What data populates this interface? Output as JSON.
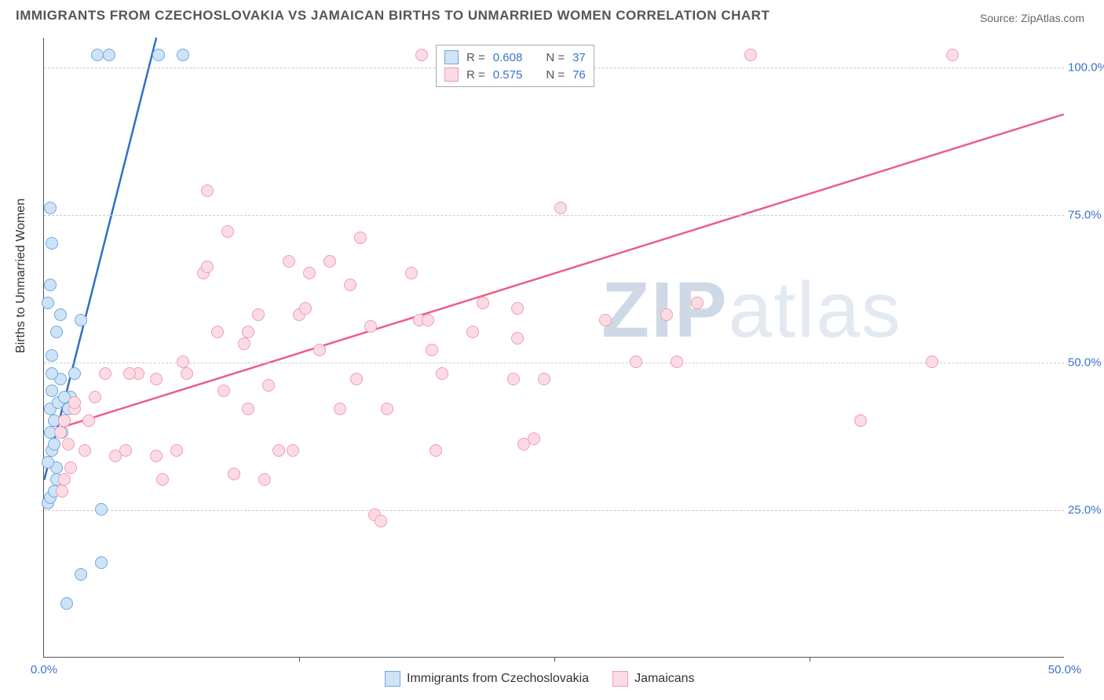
{
  "title": "IMMIGRANTS FROM CZECHOSLOVAKIA VS JAMAICAN BIRTHS TO UNMARRIED WOMEN CORRELATION CHART",
  "source_label": "Source: ZipAtlas.com",
  "ylabel": "Births to Unmarried Women",
  "watermark": {
    "prefix": "ZIP",
    "suffix": "atlas"
  },
  "chart": {
    "type": "scatter",
    "background_color": "#ffffff",
    "grid_color": "#cccccc",
    "axis_color": "#555555",
    "tick_label_color": "#3874cb",
    "xlim": [
      0,
      50
    ],
    "ylim": [
      0,
      105
    ],
    "x_ticks": [
      {
        "v": 0,
        "l": "0.0%"
      },
      {
        "v": 50,
        "l": "50.0%"
      }
    ],
    "x_minor_ticks": [
      12.5,
      25,
      37.5
    ],
    "y_ticks": [
      {
        "v": 25,
        "l": "25.0%"
      },
      {
        "v": 50,
        "l": "50.0%"
      },
      {
        "v": 75,
        "l": "75.0%"
      },
      {
        "v": 100,
        "l": "100.0%"
      }
    ],
    "marker_radius": 8,
    "marker_stroke_width": 1.5,
    "series": [
      {
        "name": "Immigrants from Czechoslovakia",
        "fill_color": "#cfe3f7",
        "stroke_color": "#6fa8e0",
        "line_color": "#2f6fc5",
        "line_width": 2.5,
        "r": 0.608,
        "n": 37,
        "regression": {
          "x1": 0,
          "y1": 30,
          "x2": 5.5,
          "y2": 105
        },
        "points": [
          [
            0.2,
            26
          ],
          [
            0.3,
            27
          ],
          [
            0.5,
            28
          ],
          [
            0.6,
            32
          ],
          [
            0.4,
            35
          ],
          [
            0.3,
            38
          ],
          [
            0.5,
            40
          ],
          [
            0.3,
            42
          ],
          [
            0.4,
            45
          ],
          [
            0.7,
            43
          ],
          [
            0.8,
            47
          ],
          [
            0.4,
            51
          ],
          [
            0.6,
            55
          ],
          [
            0.8,
            58
          ],
          [
            0.2,
            60
          ],
          [
            0.3,
            63
          ],
          [
            0.4,
            70
          ],
          [
            0.3,
            76
          ],
          [
            1.0,
            40
          ],
          [
            1.2,
            42
          ],
          [
            1.3,
            44
          ],
          [
            1.5,
            48
          ],
          [
            0.5,
            36
          ],
          [
            0.2,
            33
          ],
          [
            0.6,
            30
          ],
          [
            0.9,
            38
          ],
          [
            1.0,
            44
          ],
          [
            2.6,
            102
          ],
          [
            3.2,
            102
          ],
          [
            5.6,
            102
          ],
          [
            6.8,
            102
          ],
          [
            0.4,
            48
          ],
          [
            1.1,
            9
          ],
          [
            1.8,
            14
          ],
          [
            2.8,
            16
          ],
          [
            2.8,
            25
          ],
          [
            1.8,
            57
          ]
        ]
      },
      {
        "name": "Jamaicans",
        "fill_color": "#fbdce4",
        "stroke_color": "#f29bb1",
        "line_color": "#ec5f84",
        "line_width": 2.5,
        "r": 0.575,
        "n": 76,
        "regression": {
          "x1": 0,
          "y1": 38,
          "x2": 50,
          "y2": 92
        },
        "points": [
          [
            18.5,
            102
          ],
          [
            34.6,
            102
          ],
          [
            44.5,
            102
          ],
          [
            25.3,
            76
          ],
          [
            8.0,
            79
          ],
          [
            4.6,
            48
          ],
          [
            3.5,
            34
          ],
          [
            4.0,
            35
          ],
          [
            4.2,
            48
          ],
          [
            5.5,
            34
          ],
          [
            5.5,
            47
          ],
          [
            5.8,
            30
          ],
          [
            6.5,
            35
          ],
          [
            6.8,
            50
          ],
          [
            7.0,
            48
          ],
          [
            7.8,
            65
          ],
          [
            8.0,
            66
          ],
          [
            8.5,
            55
          ],
          [
            8.8,
            45
          ],
          [
            9.0,
            72
          ],
          [
            9.3,
            31
          ],
          [
            9.8,
            53
          ],
          [
            10.0,
            42
          ],
          [
            10.0,
            55
          ],
          [
            10.5,
            58
          ],
          [
            10.8,
            30
          ],
          [
            11.0,
            46
          ],
          [
            11.5,
            35
          ],
          [
            12.0,
            67
          ],
          [
            12.2,
            35
          ],
          [
            12.5,
            58
          ],
          [
            12.8,
            59
          ],
          [
            13.0,
            65
          ],
          [
            13.5,
            52
          ],
          [
            14.0,
            67
          ],
          [
            14.5,
            42
          ],
          [
            15.0,
            63
          ],
          [
            15.3,
            47
          ],
          [
            15.5,
            71
          ],
          [
            16.0,
            56
          ],
          [
            16.2,
            24
          ],
          [
            16.5,
            23
          ],
          [
            16.8,
            42
          ],
          [
            18.0,
            65
          ],
          [
            18.4,
            57
          ],
          [
            18.8,
            57
          ],
          [
            19.0,
            52
          ],
          [
            19.2,
            35
          ],
          [
            19.5,
            48
          ],
          [
            21.0,
            55
          ],
          [
            21.5,
            60
          ],
          [
            23.0,
            47
          ],
          [
            23.2,
            54
          ],
          [
            23.2,
            59
          ],
          [
            23.5,
            36
          ],
          [
            24.0,
            37
          ],
          [
            24.5,
            47
          ],
          [
            27.5,
            57
          ],
          [
            29.0,
            50
          ],
          [
            30.5,
            58
          ],
          [
            31.0,
            50
          ],
          [
            32.0,
            60
          ],
          [
            40.0,
            40
          ],
          [
            43.5,
            50
          ],
          [
            0.8,
            38
          ],
          [
            1.0,
            40
          ],
          [
            1.2,
            36
          ],
          [
            1.5,
            42
          ],
          [
            2.0,
            35
          ],
          [
            2.2,
            40
          ],
          [
            2.5,
            44
          ],
          [
            3.0,
            48
          ],
          [
            0.9,
            28
          ],
          [
            1.0,
            30
          ],
          [
            1.3,
            32
          ],
          [
            1.5,
            43
          ]
        ]
      }
    ]
  },
  "legend_top": {
    "r_label": "R =",
    "n_label": "N ="
  },
  "legend_bottom": {}
}
